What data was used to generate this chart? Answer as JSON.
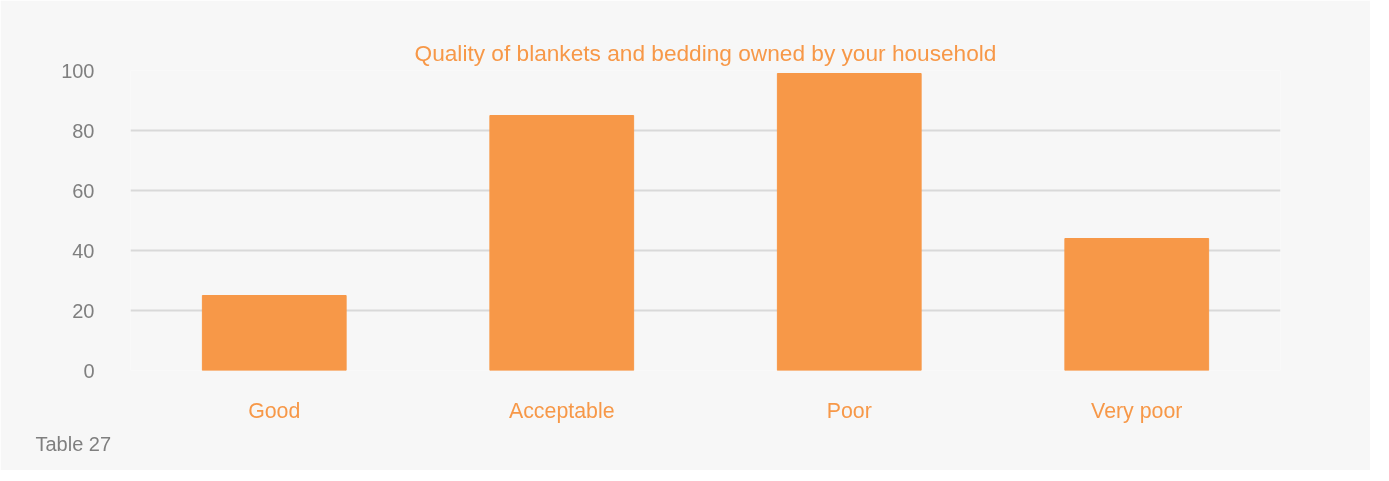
{
  "chart_data": {
    "type": "bar",
    "title": "Quality of blankets and bedding owned by your household",
    "categories": [
      "Good",
      "Acceptable",
      "Poor",
      "Very poor"
    ],
    "values": [
      25,
      85,
      99,
      44
    ],
    "color": "#f79848",
    "ylim": [
      0,
      100
    ],
    "yticks": [
      0,
      20,
      40,
      60,
      80,
      100
    ],
    "grid": "y",
    "annotations": [
      "Table 27"
    ]
  }
}
